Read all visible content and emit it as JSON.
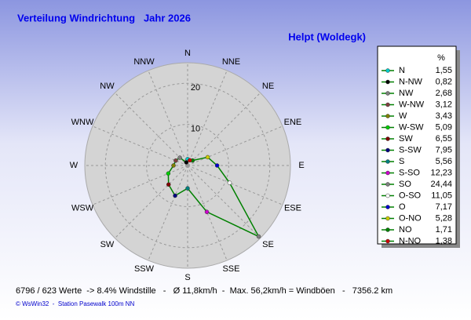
{
  "chart_data": {
    "type": "radar",
    "title": "Verteilung Windrichtung   Jahr 2026",
    "subtitle": "Helpt (Woldegk)",
    "direction_labels": [
      "N",
      "NNE",
      "NE",
      "ENE",
      "E",
      "ESE",
      "SE",
      "SSE",
      "S",
      "SSW",
      "SW",
      "WSW",
      "W",
      "WNW",
      "NW",
      "NNW"
    ],
    "rlim": [
      0,
      25
    ],
    "rticks": [
      10,
      20
    ],
    "legend_header": "%",
    "color": "#008000",
    "categories": [
      "N",
      "N-NW",
      "NW",
      "W-NW",
      "W",
      "W-SW",
      "SW",
      "S-SW",
      "S",
      "S-SO",
      "SO",
      "O-SO",
      "O",
      "O-NO",
      "NO",
      "N-NO"
    ],
    "values": [
      1.55,
      0.82,
      2.68,
      3.12,
      3.43,
      5.09,
      6.55,
      7.95,
      5.56,
      12.23,
      24.44,
      11.05,
      7.17,
      5.28,
      1.71,
      1.38
    ],
    "value_labels": [
      "1,55",
      "0,82",
      "2,68",
      "3,12",
      "3,43",
      "5,09",
      "6,55",
      "7,95",
      "5,56",
      "12,23",
      "24,44",
      "11,05",
      "7,17",
      "5,28",
      "1,71",
      "1,38"
    ],
    "colors": [
      "#00cccc",
      "#000000",
      "#808080",
      "#804040",
      "#808000",
      "#00cc00",
      "#800000",
      "#000080",
      "#008080",
      "#cc00cc",
      "#808080",
      "#ffffff",
      "#0000cc",
      "#cccc00",
      "#008000",
      "#cc0000"
    ]
  },
  "footer": {
    "stats": "6796 / 623 Werte  -> 8.4% Windstille   -   Ø 11,8km/h  -  Max. 56,2km/h = Windböen   -   7356.2 km",
    "credit": "© WsWin32  -  Station Pasewalk 100m NN"
  }
}
